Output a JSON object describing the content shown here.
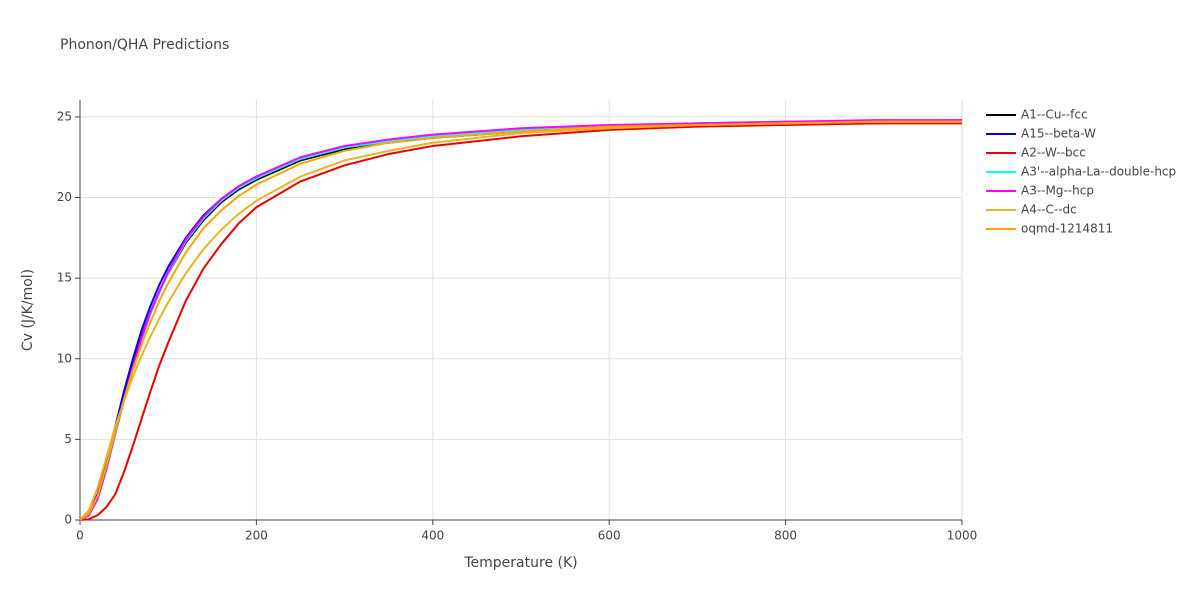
{
  "chart_data": {
    "type": "line",
    "title": "Phonon/QHA Predictions",
    "x_label": "Temperature (K)",
    "y_label": "Cv (J/K/mol)",
    "x": [
      0,
      10,
      20,
      30,
      40,
      50,
      60,
      70,
      80,
      90,
      100,
      120,
      140,
      160,
      180,
      200,
      250,
      300,
      350,
      400,
      500,
      600,
      700,
      800,
      900,
      1000
    ],
    "series": [
      {
        "name": "A1--Cu--fcc",
        "color": "#000000",
        "values": [
          0,
          0.3,
          1.4,
          3.3,
          5.5,
          7.6,
          9.6,
          11.4,
          12.9,
          14.2,
          15.3,
          17.2,
          18.6,
          19.7,
          20.5,
          21.1,
          22.3,
          23.0,
          23.4,
          23.7,
          24.1,
          24.3,
          24.5,
          24.6,
          24.6,
          24.7
        ]
      },
      {
        "name": "A15--beta-W",
        "color": "#0000ff",
        "values": [
          0,
          0.4,
          1.6,
          3.6,
          5.8,
          8.0,
          10.0,
          11.8,
          13.3,
          14.6,
          15.7,
          17.5,
          18.9,
          19.9,
          20.7,
          21.3,
          22.4,
          23.1,
          23.5,
          23.8,
          24.2,
          24.4,
          24.6,
          24.7,
          24.7,
          24.8
        ]
      },
      {
        "name": "A2--W--bcc",
        "color": "#ee0000",
        "values": [
          0,
          0.05,
          0.3,
          0.8,
          1.6,
          3.0,
          4.6,
          6.3,
          8.0,
          9.6,
          11.0,
          13.6,
          15.6,
          17.1,
          18.4,
          19.4,
          21.0,
          22.0,
          22.7,
          23.2,
          23.8,
          24.2,
          24.4,
          24.5,
          24.6,
          24.6
        ]
      },
      {
        "name": "A3'--alpha-La--double-hcp",
        "color": "#00ffff",
        "values": [
          0,
          0.3,
          1.3,
          3.1,
          5.3,
          7.4,
          9.4,
          11.2,
          12.8,
          14.1,
          15.3,
          17.3,
          18.7,
          19.8,
          20.6,
          21.2,
          22.4,
          23.1,
          23.5,
          23.8,
          24.2,
          24.4,
          24.6,
          24.7,
          24.7,
          24.8
        ]
      },
      {
        "name": "A3--Mg--hcp",
        "color": "#ff00ff",
        "values": [
          0,
          0.3,
          1.3,
          3.2,
          5.4,
          7.5,
          9.5,
          11.3,
          12.9,
          14.2,
          15.4,
          17.4,
          18.8,
          19.9,
          20.7,
          21.3,
          22.5,
          23.2,
          23.6,
          23.9,
          24.3,
          24.5,
          24.6,
          24.7,
          24.8,
          24.8
        ]
      },
      {
        "name": "A4--C--dc",
        "color": "#e8b422",
        "values": [
          0,
          0.6,
          2.0,
          3.9,
          5.8,
          7.4,
          8.9,
          10.2,
          11.4,
          12.5,
          13.5,
          15.3,
          16.8,
          18.0,
          19.0,
          19.8,
          21.3,
          22.3,
          22.9,
          23.4,
          24.0,
          24.3,
          24.5,
          24.6,
          24.7,
          24.7
        ]
      },
      {
        "name": "oqmd-1214811",
        "color": "#ffa500",
        "values": [
          0,
          0.4,
          1.5,
          3.4,
          5.5,
          7.5,
          9.3,
          10.9,
          12.3,
          13.6,
          14.7,
          16.6,
          18.1,
          19.2,
          20.1,
          20.8,
          22.1,
          22.9,
          23.4,
          23.7,
          24.1,
          24.4,
          24.5,
          24.6,
          24.7,
          24.7
        ]
      }
    ],
    "xlim": [
      0,
      1000
    ],
    "xticks": [
      0,
      200,
      400,
      600,
      800,
      1000
    ],
    "ylim": [
      0,
      26.05
    ],
    "yticks": [
      0,
      5,
      10,
      15,
      20,
      25
    ],
    "grid": true
  }
}
